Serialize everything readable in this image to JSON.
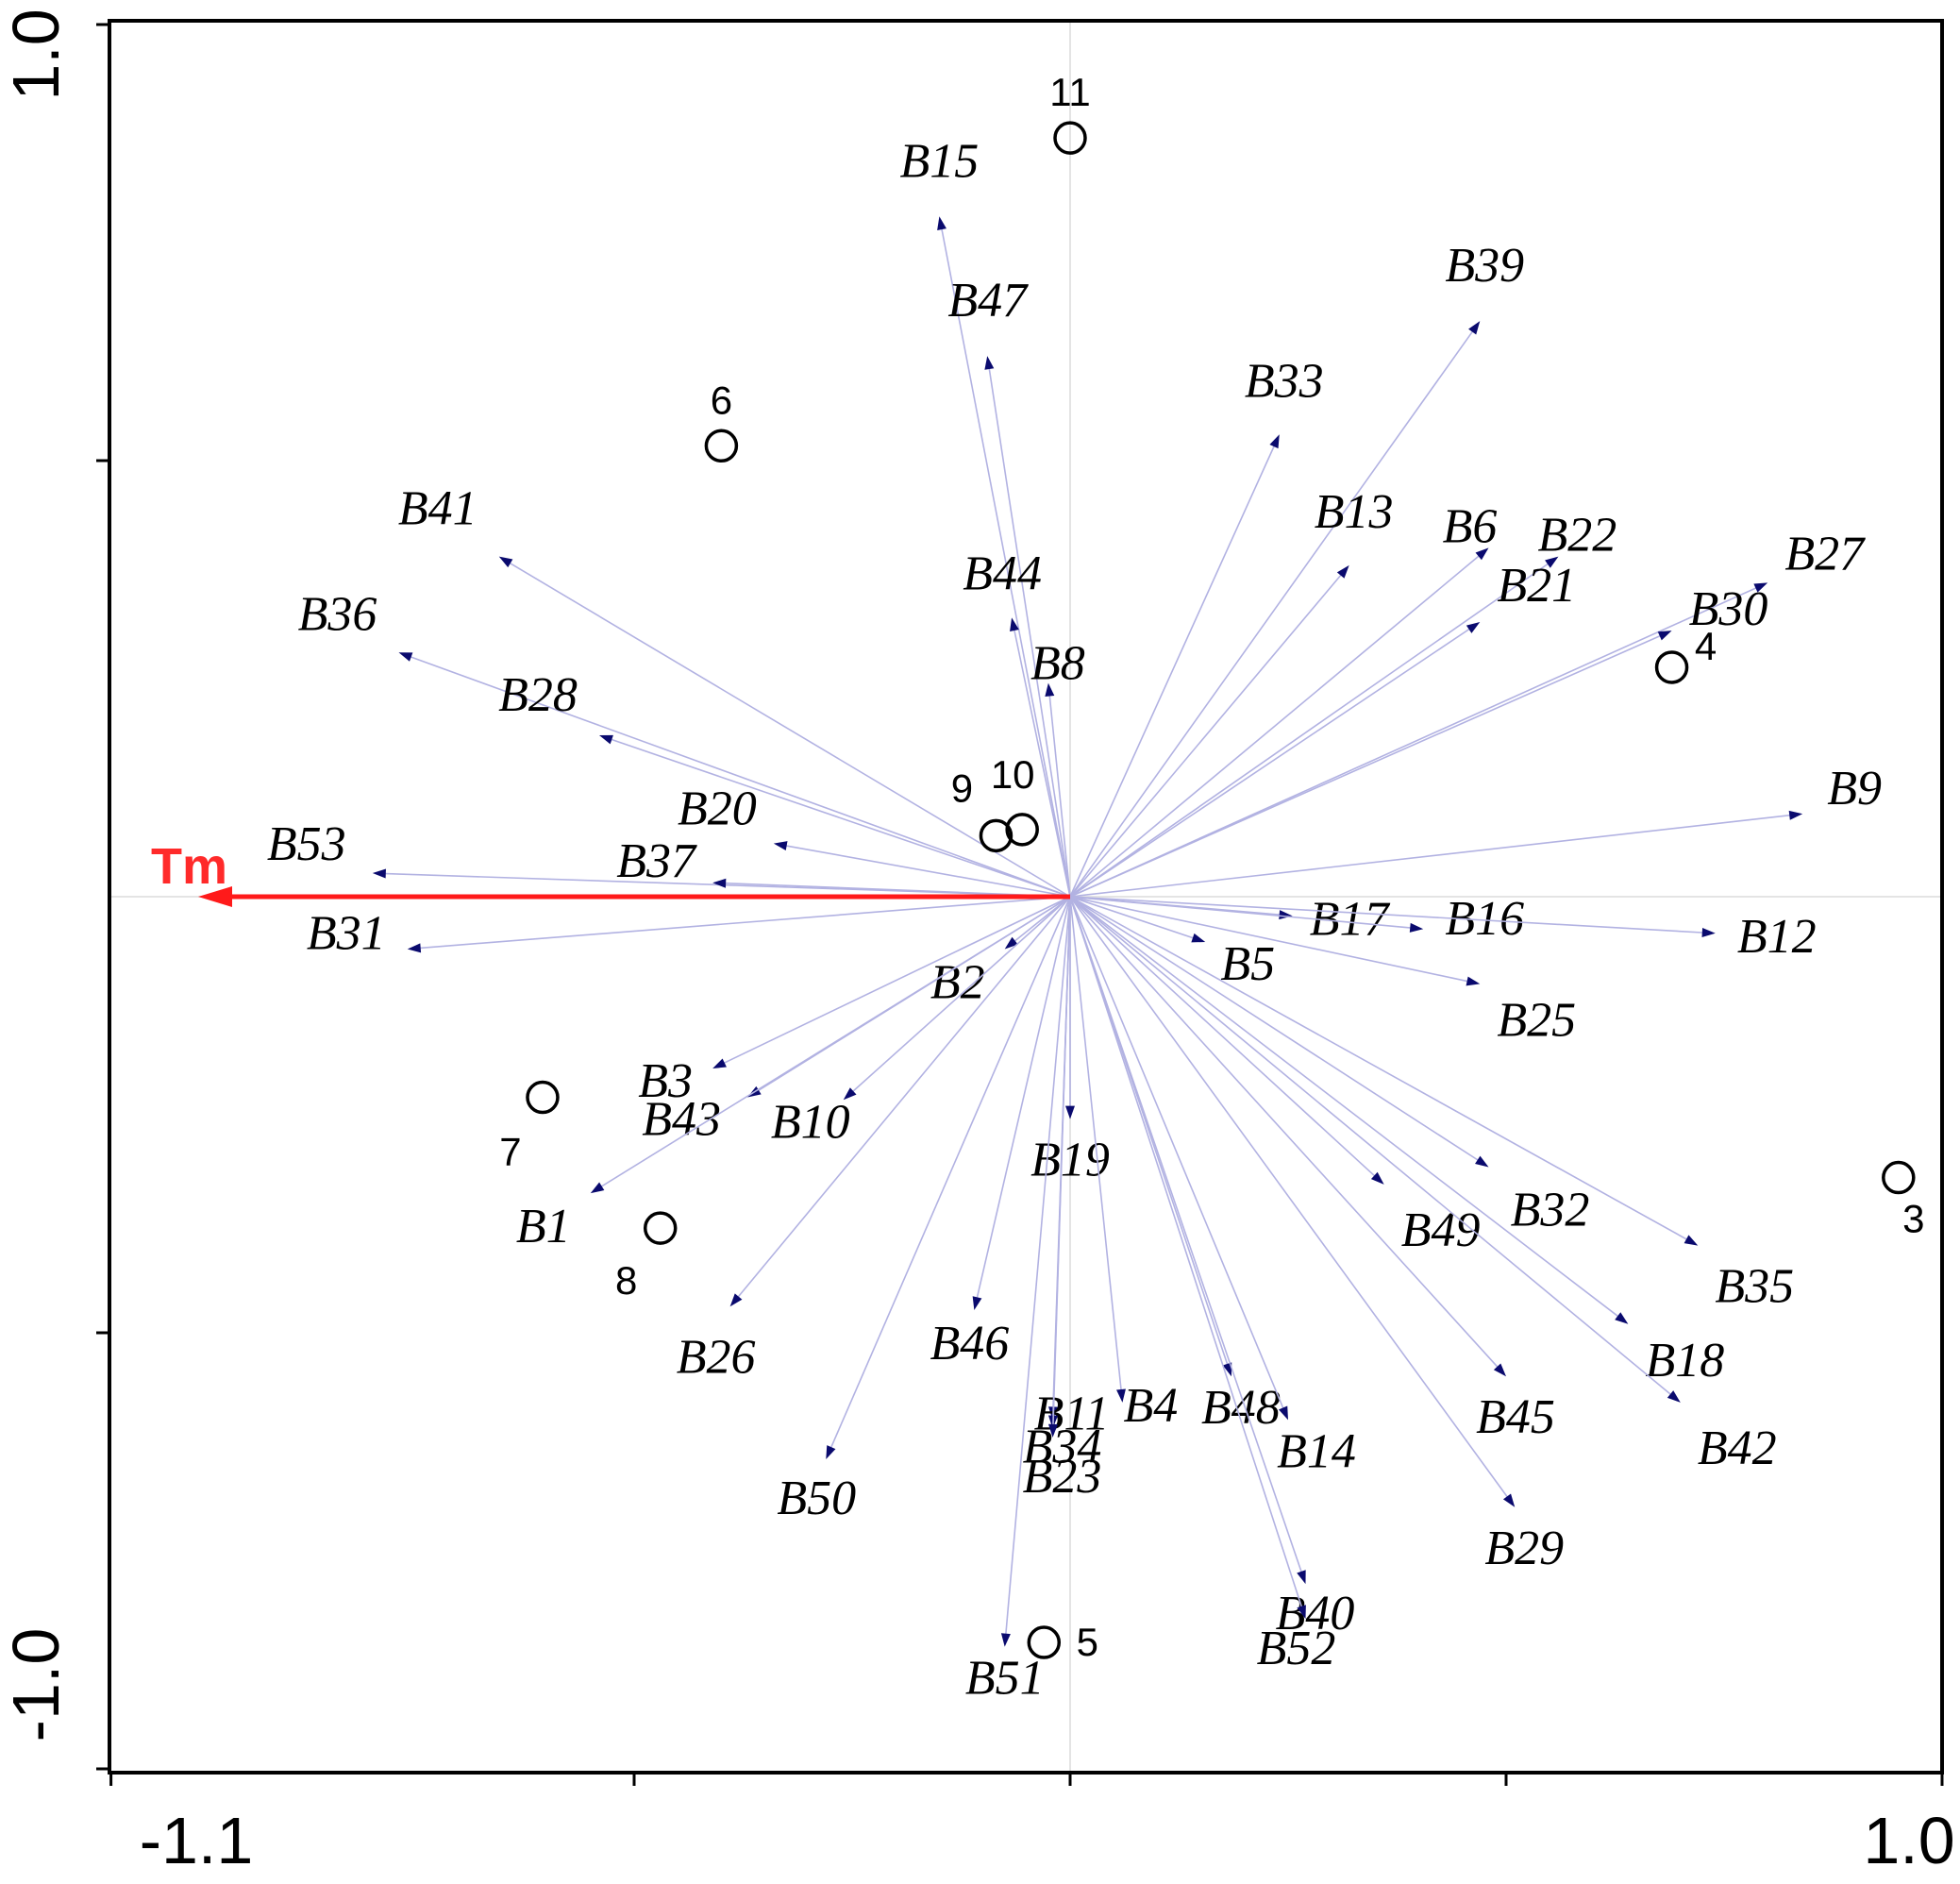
{
  "chart_data": {
    "type": "scatter",
    "title": "",
    "xlabel": "",
    "ylabel": "",
    "xlim": [
      -1.1,
      1.0
    ],
    "ylim": [
      -1.0,
      1.0
    ],
    "x_tick_labels": [
      "-1.1",
      "1.0"
    ],
    "y_tick_labels": [
      "1.0",
      "-1.0"
    ],
    "grid": false,
    "colors": {
      "species_arrow": "#b2b2e2",
      "species_head": "#0a0a6e",
      "env_arrow": "#ff1a1a",
      "points": "#000000"
    },
    "species_arrows": [
      {
        "label": "B15",
        "x": -0.15,
        "y": 0.78
      },
      {
        "label": "B47",
        "x": -0.095,
        "y": 0.62
      },
      {
        "label": "B39",
        "x": 0.47,
        "y": 0.66
      },
      {
        "label": "B33",
        "x": 0.24,
        "y": 0.53
      },
      {
        "label": "B41",
        "x": -0.655,
        "y": 0.39
      },
      {
        "label": "B36",
        "x": -0.77,
        "y": 0.28
      },
      {
        "label": "B28",
        "x": -0.54,
        "y": 0.185
      },
      {
        "label": "B44",
        "x": -0.067,
        "y": 0.32
      },
      {
        "label": "B8",
        "x": -0.025,
        "y": 0.245
      },
      {
        "label": "B13",
        "x": 0.32,
        "y": 0.38
      },
      {
        "label": "B6",
        "x": 0.48,
        "y": 0.4
      },
      {
        "label": "B22",
        "x": 0.56,
        "y": 0.39
      },
      {
        "label": "B21",
        "x": 0.47,
        "y": 0.315
      },
      {
        "label": "B27",
        "x": 0.8,
        "y": 0.36
      },
      {
        "label": "B30",
        "x": 0.69,
        "y": 0.305
      },
      {
        "label": "B9",
        "x": 0.84,
        "y": 0.095
      },
      {
        "label": "B20",
        "x": -0.34,
        "y": 0.061
      },
      {
        "label": "B53",
        "x": -0.8,
        "y": 0.027
      },
      {
        "label": "B37",
        "x": -0.41,
        "y": 0.016
      },
      {
        "label": "B31",
        "x": -0.76,
        "y": -0.06
      },
      {
        "label": "B17",
        "x": 0.255,
        "y": -0.022
      },
      {
        "label": "B16",
        "x": 0.405,
        "y": -0.037
      },
      {
        "label": "B12",
        "x": 0.74,
        "y": -0.042
      },
      {
        "label": "B5",
        "x": 0.155,
        "y": -0.052
      },
      {
        "label": "B25",
        "x": 0.47,
        "y": -0.1
      },
      {
        "label": "B2",
        "x": -0.075,
        "y": -0.06
      },
      {
        "label": "B3",
        "x": -0.41,
        "y": -0.197
      },
      {
        "label": "B43",
        "x": -0.37,
        "y": -0.23
      },
      {
        "label": "B10",
        "x": -0.26,
        "y": -0.233
      },
      {
        "label": "B1",
        "x": -0.55,
        "y": -0.34
      },
      {
        "label": "B19",
        "x": 0.0,
        "y": -0.255
      },
      {
        "label": "B26",
        "x": -0.39,
        "y": -0.47
      },
      {
        "label": "B46",
        "x": -0.11,
        "y": -0.474
      },
      {
        "label": "B50",
        "x": -0.28,
        "y": -0.645
      },
      {
        "label": "B11",
        "x": -0.02,
        "y": -0.6
      },
      {
        "label": "B34",
        "x": -0.02,
        "y": -0.61
      },
      {
        "label": "B23",
        "x": -0.02,
        "y": -0.62
      },
      {
        "label": "B4",
        "x": 0.06,
        "y": -0.58
      },
      {
        "label": "B48",
        "x": 0.185,
        "y": -0.55
      },
      {
        "label": "B14",
        "x": 0.25,
        "y": -0.6
      },
      {
        "label": "B40",
        "x": 0.27,
        "y": -0.788
      },
      {
        "label": "B52",
        "x": 0.27,
        "y": -0.828
      },
      {
        "label": "B51",
        "x": -0.075,
        "y": -0.86
      },
      {
        "label": "B49",
        "x": 0.36,
        "y": -0.33
      },
      {
        "label": "B32",
        "x": 0.48,
        "y": -0.31
      },
      {
        "label": "B35",
        "x": 0.72,
        "y": -0.4
      },
      {
        "label": "B18",
        "x": 0.64,
        "y": -0.49
      },
      {
        "label": "B42",
        "x": 0.7,
        "y": -0.58
      },
      {
        "label": "B45",
        "x": 0.5,
        "y": -0.55
      },
      {
        "label": "B29",
        "x": 0.51,
        "y": -0.7
      }
    ],
    "samples": [
      {
        "label": "11",
        "x": 0.0,
        "y": 0.87
      },
      {
        "label": "6",
        "x": -0.4,
        "y": 0.517
      },
      {
        "label": "4",
        "x": 0.69,
        "y": 0.263
      },
      {
        "label": "9",
        "x": -0.085,
        "y": 0.07
      },
      {
        "label": "10",
        "x": -0.055,
        "y": 0.077
      },
      {
        "label": "7",
        "x": -0.605,
        "y": -0.23
      },
      {
        "label": "8",
        "x": -0.47,
        "y": -0.38
      },
      {
        "label": "3",
        "x": 0.95,
        "y": -0.322
      },
      {
        "label": "5",
        "x": -0.03,
        "y": -0.855
      }
    ],
    "env_arrows": [
      {
        "label": "Tm",
        "x": -1.0,
        "y": 0.0
      }
    ]
  }
}
